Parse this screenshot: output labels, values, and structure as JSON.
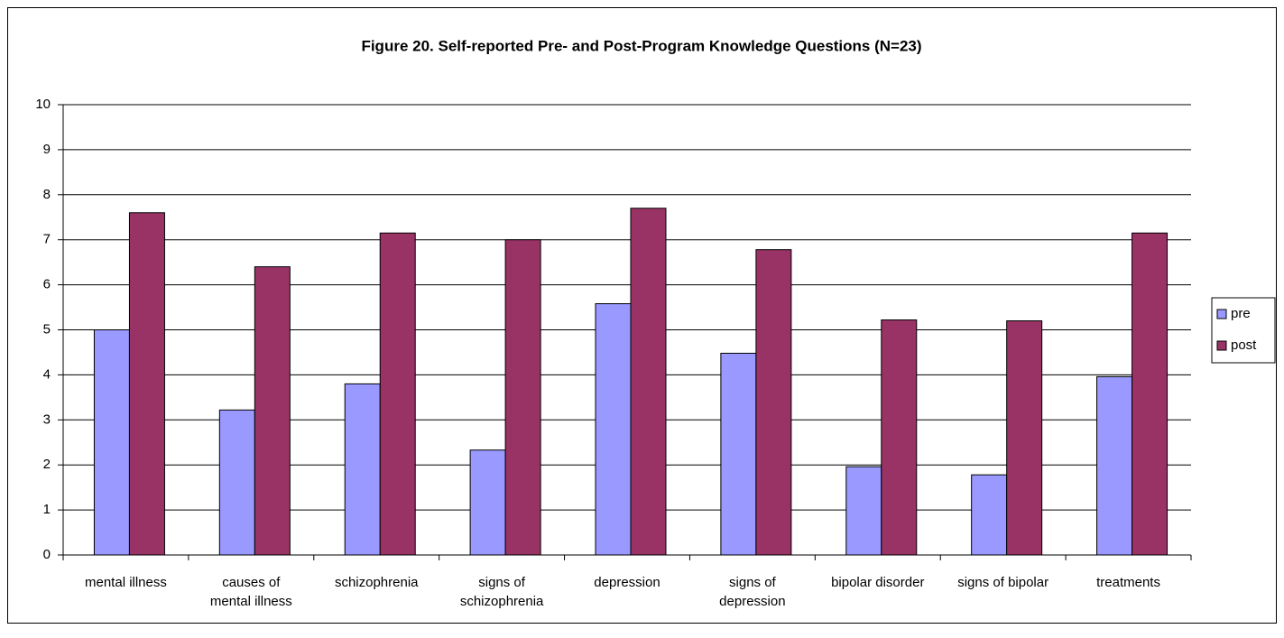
{
  "chart_data": {
    "type": "bar",
    "title": "Figure 20. Self-reported Pre- and Post-Program Knowledge Questions (N=23)",
    "categories": [
      "mental illness",
      "causes of mental illness",
      "schizophrenia",
      "signs of schizophrenia",
      "depression",
      "signs of depression",
      "bipolar disorder",
      "signs of bipolar",
      "treatments"
    ],
    "series": [
      {
        "name": "pre",
        "color": "#9999ff",
        "values": [
          5.0,
          3.22,
          3.8,
          2.33,
          5.58,
          4.48,
          1.96,
          1.78,
          3.96
        ]
      },
      {
        "name": "post",
        "color": "#993366",
        "values": [
          7.6,
          6.4,
          7.15,
          7.0,
          7.7,
          6.78,
          5.22,
          5.2,
          7.15
        ]
      }
    ],
    "ylim": [
      0,
      10
    ],
    "yticks": [
      0,
      1,
      2,
      3,
      4,
      5,
      6,
      7,
      8,
      9,
      10
    ],
    "grid": true,
    "legend": "right"
  }
}
